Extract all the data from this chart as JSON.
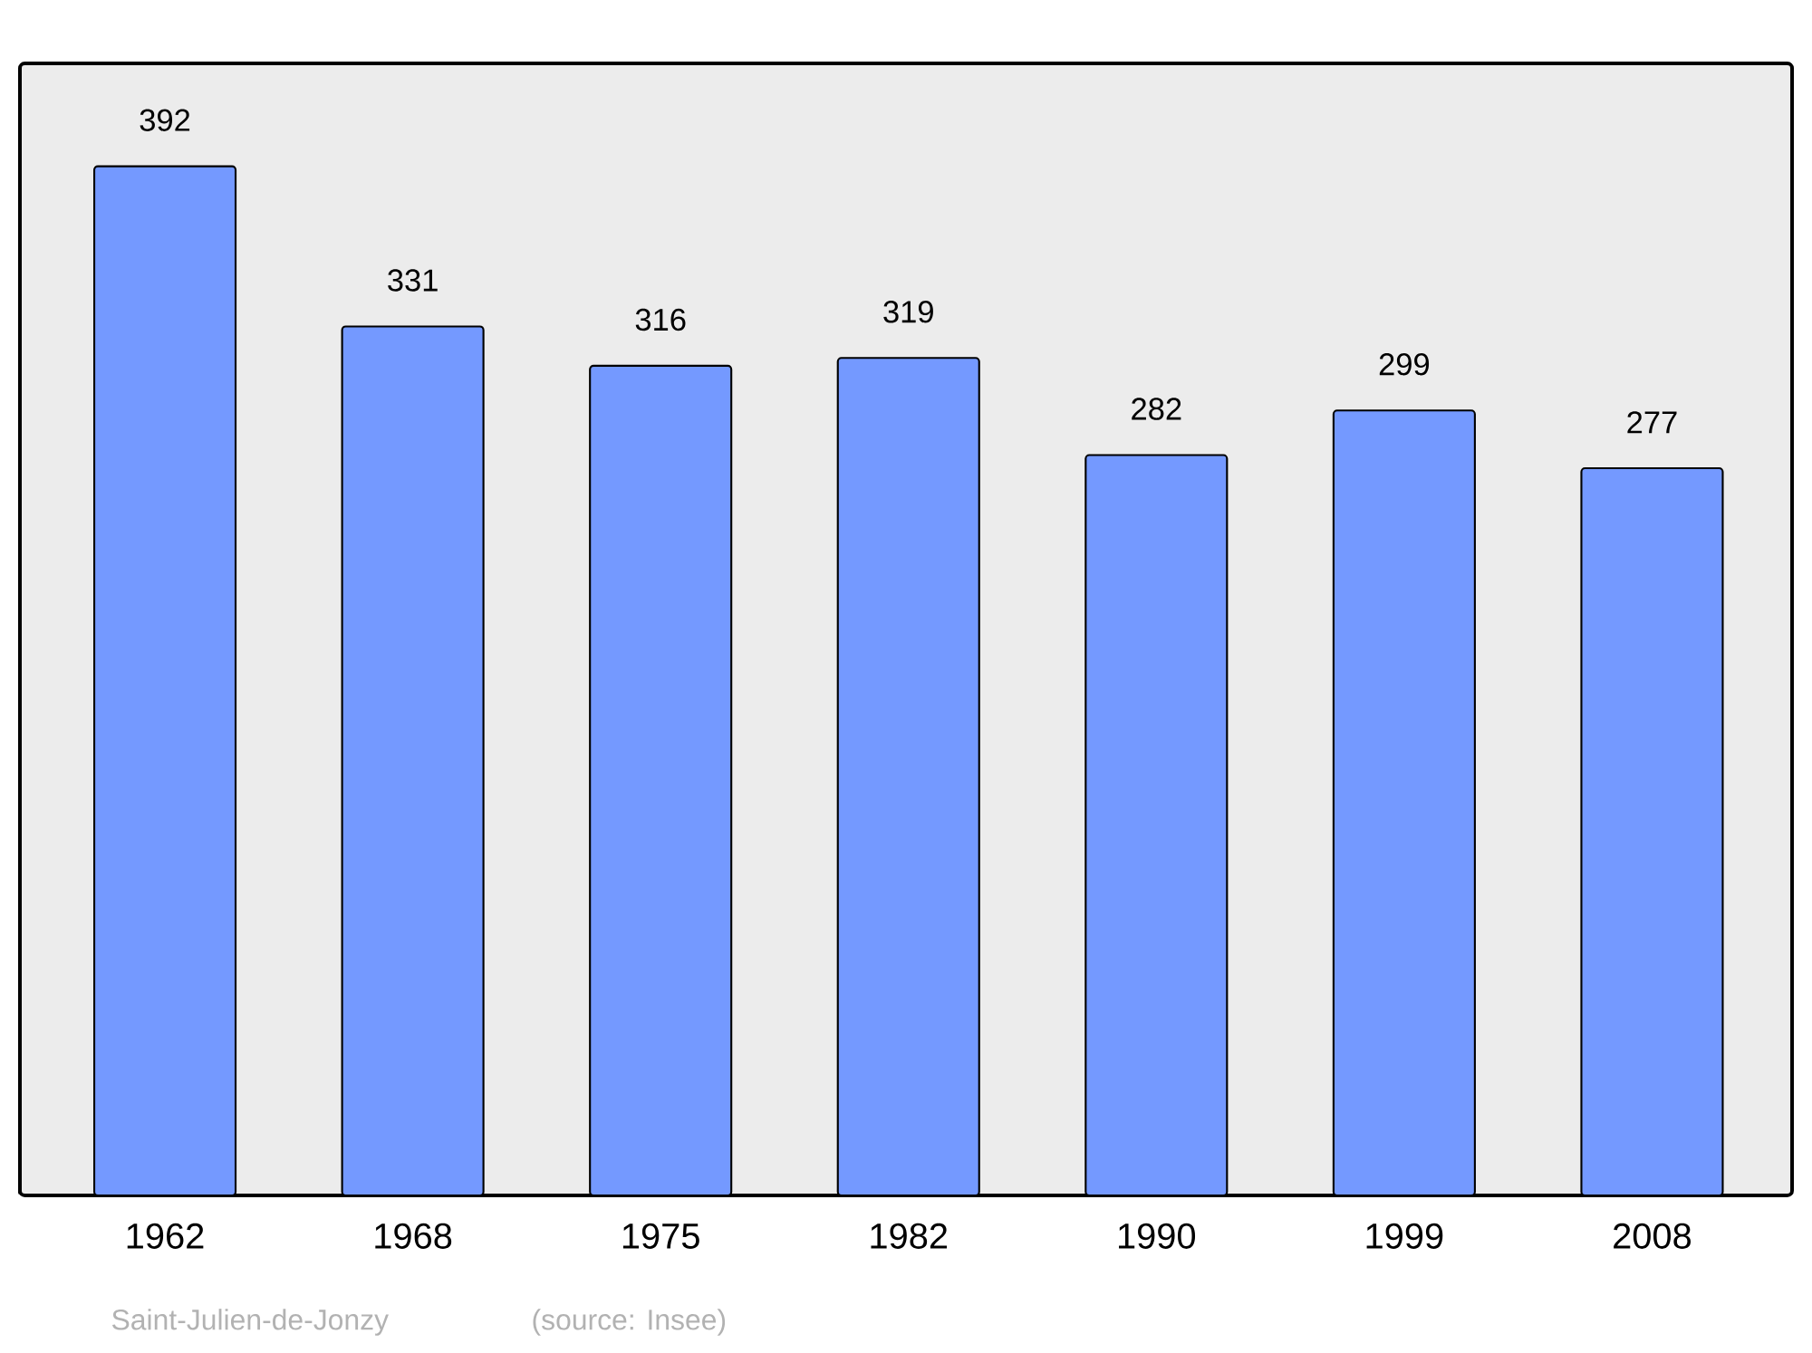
{
  "chart_data": {
    "type": "bar",
    "categories": [
      "1962",
      "1968",
      "1975",
      "1982",
      "1990",
      "1999",
      "2008"
    ],
    "values": [
      392,
      331,
      316,
      319,
      282,
      299,
      277
    ],
    "color": "#7499ff",
    "data_labels": true,
    "annotations": [
      "Saint-Julien-de-Jonzy",
      "(source: Insee)"
    ]
  }
}
